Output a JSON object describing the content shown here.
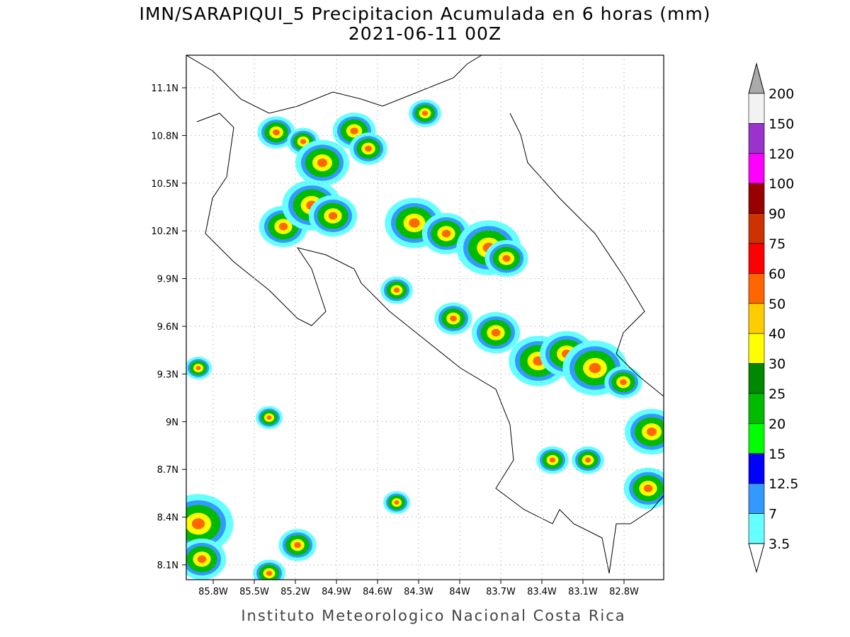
{
  "header": {
    "title": "IMN/SARAPIQUI_5 Precipitacion Acumulada en 6 horas (mm)",
    "subtitle": "2021-06-11 00Z"
  },
  "map": {
    "lat_labels": [
      "11.1N",
      "10.8N",
      "10.5N",
      "10.2N",
      "9.9N",
      "9.6N",
      "9.3N",
      "9N",
      "8.7N",
      "8.4N",
      "8.1N"
    ],
    "lon_labels": [
      "85.8W",
      "85.5W",
      "85.2W",
      "84.9W",
      "84.6W",
      "84.3W",
      "84W",
      "83.7W",
      "83.4W",
      "83.1W",
      "82.8W"
    ]
  },
  "colorbar": {
    "labels": [
      "200",
      "150",
      "120",
      "100",
      "90",
      "75",
      "60",
      "50",
      "40",
      "30",
      "25",
      "20",
      "15",
      "12.5",
      "7",
      "3.5"
    ],
    "colors": [
      "#f2f2f2",
      "#9933cc",
      "#ff00ff",
      "#990000",
      "#cc3300",
      "#ff0000",
      "#ff6600",
      "#ffcc00",
      "#ffff00",
      "#008800",
      "#00bb00",
      "#00ff00",
      "#0000ff",
      "#3399ff",
      "#66ffff"
    ],
    "over_color": "#aaaaaa",
    "under_color": "#ffffff"
  },
  "footer": {
    "credit": "Instituto Meteorologico Nacional Costa Rica"
  }
}
